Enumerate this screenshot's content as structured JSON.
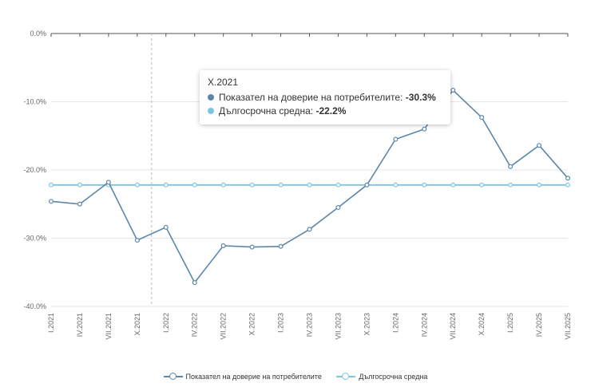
{
  "chart_data": {
    "type": "line",
    "title": "",
    "xlabel": "",
    "ylabel": "",
    "ylim": [
      -40,
      0
    ],
    "yticks": [
      0,
      -10,
      -20,
      -30,
      -40
    ],
    "ytick_labels": [
      "0.0%",
      "-10.0%",
      "-20.0%",
      "-30.0%",
      "-40.0%"
    ],
    "categories": [
      "I.2021",
      "IV.2021",
      "VII.2021",
      "X.2021",
      "I.2022",
      "IV.2022",
      "VII.2022",
      "X.2022",
      "I.2023",
      "IV.2023",
      "VII.2023",
      "X.2023",
      "I.2024",
      "IV.2024",
      "VII.2024",
      "X.2024",
      "I.2025",
      "IV.2025",
      "VII.2025"
    ],
    "series": [
      {
        "name": "Показател на доверие на потребителите",
        "color": "#5b87ab",
        "values": [
          -24.6,
          -25.0,
          -21.8,
          -30.3,
          -28.4,
          -36.5,
          -31.1,
          -31.3,
          -31.2,
          -28.7,
          -25.5,
          -22.2,
          -15.5,
          -14.0,
          -8.3,
          -12.3,
          -19.5,
          -16.4,
          -21.2
        ]
      },
      {
        "name": "Дългосрочна средна",
        "color": "#7ec4e4",
        "values": [
          -22.2,
          -22.2,
          -22.2,
          -22.2,
          -22.2,
          -22.2,
          -22.2,
          -22.2,
          -22.2,
          -22.2,
          -22.2,
          -22.2,
          -22.2,
          -22.2,
          -22.2,
          -22.2,
          -22.2,
          -22.2,
          -22.2
        ]
      }
    ],
    "legend": "bottom",
    "grid": true
  },
  "tooltip": {
    "title": "X.2021",
    "rows": [
      {
        "label": "Показател на доверие на потребителите:",
        "value": "-30.3%",
        "color": "#5b87ab"
      },
      {
        "label": "Дългосрочна средна:",
        "value": "-22.2%",
        "color": "#7ec4e4"
      }
    ]
  },
  "legend": {
    "items": [
      {
        "label": "Показател на доверие на потребителите",
        "color": "#5b87ab"
      },
      {
        "label": "Дългосрочна средна",
        "color": "#7ec4e4"
      }
    ]
  }
}
